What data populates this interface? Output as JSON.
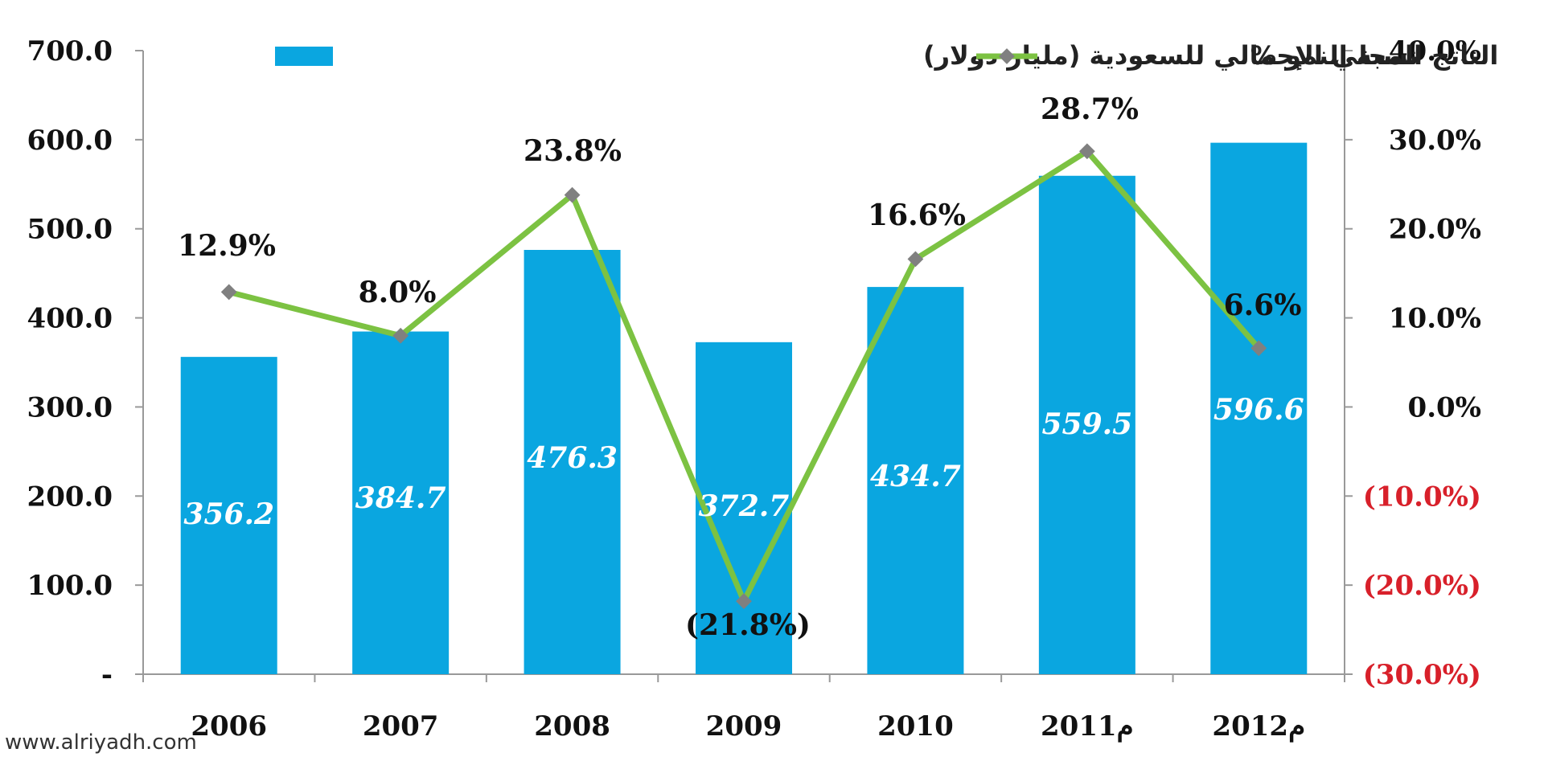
{
  "chart_data": {
    "type": "bar",
    "categories": [
      "2006",
      "2007",
      "2008",
      "2009",
      "2010",
      "2011م",
      "2012م"
    ],
    "series": [
      {
        "name": "الناتج المحلي الإجمالي للسعودية (مليار دولار)",
        "type": "bar",
        "axis": "left",
        "values": [
          356.2,
          384.7,
          476.3,
          372.7,
          434.7,
          559.5,
          596.6
        ],
        "labels": [
          "356.2",
          "384.7",
          "476.3",
          "372.7",
          "434.7",
          "559.5",
          "596.6"
        ],
        "color": "#0aa6e0"
      },
      {
        "name": "نسبة النمو %",
        "type": "line",
        "axis": "right",
        "values": [
          12.9,
          8.0,
          23.8,
          -21.8,
          16.6,
          28.7,
          6.6
        ],
        "labels": [
          "12.9%",
          "8.0%",
          "23.8%",
          "(21.8%)",
          "16.6%",
          "28.7%",
          "6.6%"
        ],
        "color": "#7cc242",
        "marker_color": "#808080"
      }
    ],
    "left_axis": {
      "ylim": [
        0,
        700
      ],
      "ticks": [
        0,
        100,
        200,
        300,
        400,
        500,
        600,
        700
      ],
      "tick_labels": [
        "-",
        "100.0",
        "200.0",
        "300.0",
        "400.0",
        "500.0",
        "600.0",
        "700.0"
      ]
    },
    "right_axis": {
      "ylim": [
        -30,
        40
      ],
      "ticks": [
        -30,
        -20,
        -10,
        0,
        10,
        20,
        30,
        40
      ],
      "tick_labels": [
        "(30.0%)",
        "(20.0%)",
        "(10.0%)",
        "0.0%",
        "10.0%",
        "20.0%",
        "30.0%",
        "40.0%"
      ],
      "negative_color": "#d8202a"
    },
    "legend": "top",
    "grid": false
  },
  "watermark": "www.alriyadh.com"
}
